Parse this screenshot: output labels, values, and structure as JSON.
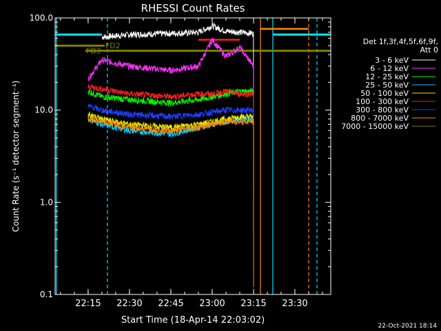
{
  "chart_data": {
    "type": "line",
    "title": "RHESSI Count Rates",
    "xlabel": "Start Time (18-Apr-14 22:03:02)",
    "ylabel": "Count Rate (s⁻¹ detector segment⁻¹)",
    "y_scale": "log",
    "ylim": [
      0.1,
      100.0
    ],
    "y_ticks": [
      "0.1",
      "1.0",
      "10.0",
      "100.0"
    ],
    "xlim": [
      "22:03:02",
      "23:43:00"
    ],
    "x_ticks": [
      "22:15",
      "22:30",
      "22:45",
      "23:00",
      "23:15",
      "23:30"
    ],
    "grid": false,
    "legend_position": "right",
    "legend_title": [
      "Det 1f,3f,4f,5f,6f,9f,",
      "Att 0"
    ],
    "series": [
      {
        "name": "3 - 6 keV",
        "color": "#ffffff",
        "x": [
          "22:05",
          "22:15",
          "22:20",
          "22:30",
          "22:45",
          "22:55",
          "23:00",
          "23:05",
          "23:10",
          "23:15"
        ],
        "y": [
          null,
          null,
          62,
          66,
          68,
          70,
          82,
          72,
          70,
          68
        ]
      },
      {
        "name": "6 - 12 keV",
        "color": "#ff33ff",
        "x": [
          "22:05",
          "22:15",
          "22:20",
          "22:30",
          "22:45",
          "22:55",
          "23:00",
          "23:05",
          "23:10",
          "23:15"
        ],
        "y": [
          null,
          22,
          35,
          30,
          27,
          30,
          58,
          38,
          48,
          30
        ]
      },
      {
        "name": "12 - 25 keV",
        "color": "#00ff00",
        "x": [
          "22:05",
          "22:15",
          "22:20",
          "22:30",
          "22:45",
          "22:55",
          "23:00",
          "23:05",
          "23:10",
          "23:15"
        ],
        "y": [
          null,
          16,
          14,
          13,
          12,
          13,
          14,
          15,
          16,
          16
        ]
      },
      {
        "name": "25 - 50 keV",
        "color": "#00ccff",
        "x": [
          "22:05",
          "22:15",
          "22:20",
          "22:30",
          "22:45",
          "22:55",
          "23:00",
          "23:05",
          "23:10",
          "23:15"
        ],
        "y": [
          null,
          8,
          7,
          6,
          5.5,
          6.5,
          7,
          7.5,
          8,
          8
        ]
      },
      {
        "name": "50 - 100 keV",
        "color": "#e6e600",
        "x": [
          "22:05",
          "22:15",
          "22:20",
          "22:30",
          "22:45",
          "22:55",
          "23:00",
          "23:05",
          "23:10",
          "23:15"
        ],
        "y": [
          null,
          9,
          8,
          7,
          6.5,
          7,
          7.5,
          8,
          8.5,
          8.5
        ]
      },
      {
        "name": "100 - 300 keV",
        "color": "#ff2020",
        "x": [
          "22:05",
          "22:15",
          "22:20",
          "22:30",
          "22:45",
          "22:55",
          "23:00",
          "23:05",
          "23:10",
          "23:15"
        ],
        "y": [
          null,
          18,
          17,
          15,
          14,
          15,
          15,
          16,
          15,
          15
        ]
      },
      {
        "name": "300 - 800 keV",
        "color": "#2040ff",
        "x": [
          "22:05",
          "22:15",
          "22:20",
          "22:30",
          "22:45",
          "22:55",
          "23:00",
          "23:05",
          "23:10",
          "23:15"
        ],
        "y": [
          null,
          11,
          10,
          9,
          8.5,
          9,
          9.5,
          10,
          10,
          10
        ]
      },
      {
        "name": "800 - 7000 keV",
        "color": "#ff8c00",
        "x": [
          "22:05",
          "22:15",
          "22:20",
          "22:30",
          "22:45",
          "22:55",
          "23:00",
          "23:05",
          "23:10",
          "23:15"
        ],
        "y": [
          null,
          8,
          7.5,
          6.5,
          6,
          6.5,
          7,
          7.5,
          7.5,
          7.5
        ]
      },
      {
        "name": "7000 - 15000 keV",
        "color": "#808000",
        "x": [
          "22:05",
          "22:15",
          "22:20",
          "22:30",
          "22:45",
          "22:55",
          "23:00",
          "23:05",
          "23:10",
          "23:15"
        ],
        "y": [
          null,
          45,
          44,
          44,
          44,
          44,
          44,
          44,
          44,
          44
        ]
      }
    ],
    "annotations": [
      {
        "text": "FD2",
        "color": "#808000"
      },
      {
        "text": "FD3",
        "color": "#808000"
      }
    ],
    "footer": "22-Oct-2021 18:14"
  }
}
